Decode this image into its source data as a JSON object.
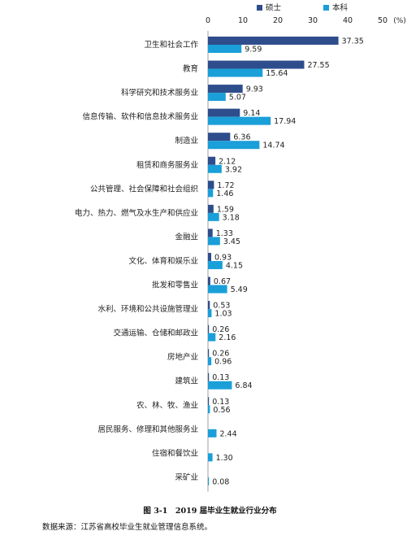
{
  "chart_data": {
    "type": "bar",
    "orientation": "horizontal",
    "unit_label": "(%)",
    "xlim": [
      0,
      50
    ],
    "xticks": [
      0,
      10,
      20,
      30,
      40,
      50
    ],
    "grid": false,
    "legend_position": "top",
    "categories": [
      "卫生和社会工作",
      "教育",
      "科学研究和技术服务业",
      "信息传输、软件和信息技术服务业",
      "制造业",
      "租赁和商务服务业",
      "公共管理、社会保障和社会组织",
      "电力、热力、燃气及水生产和供应业",
      "金融业",
      "文化、体育和娱乐业",
      "批发和零售业",
      "水利、环境和公共设施管理业",
      "交通运输、仓储和邮政业",
      "房地产业",
      "建筑业",
      "农、林、牧、渔业",
      "居民服务、修理和其他服务业",
      "住宿和餐饮业",
      "采矿业"
    ],
    "series": [
      {
        "name": "硕士",
        "color": "#2e4d8c",
        "values": [
          37.35,
          27.55,
          9.93,
          9.14,
          6.36,
          2.12,
          1.72,
          1.59,
          1.33,
          0.93,
          0.67,
          0.53,
          0.26,
          0.26,
          0.13,
          0.13,
          null,
          null,
          null
        ],
        "labels": [
          "37.35",
          "27.55",
          "9.93",
          "9.14",
          "6.36",
          "2.12",
          "1.72",
          "1.59",
          "1.33",
          "0.93",
          "0.67",
          "0.53",
          "0.26",
          "0.26",
          "0.13",
          "0.13",
          null,
          null,
          null
        ]
      },
      {
        "name": "本科",
        "color": "#1a9fd9",
        "values": [
          9.59,
          15.64,
          5.07,
          17.94,
          14.74,
          3.92,
          1.46,
          3.18,
          3.45,
          4.15,
          5.49,
          1.03,
          2.16,
          0.96,
          6.84,
          0.56,
          2.44,
          1.3,
          0.08
        ],
        "labels": [
          "9.59",
          "15.64",
          "5.07",
          "17.94",
          "14.74",
          "3.92",
          "1.46",
          "3.18",
          "3.45",
          "4.15",
          "5.49",
          "1.03",
          "2.16",
          "0.96",
          "6.84",
          "0.56",
          "2.44",
          "1.30",
          "0.08"
        ]
      }
    ]
  },
  "caption": "图 3-1　2019 届毕业生就业行业分布",
  "source": "数据来源：江苏省高校毕业生就业管理信息系统。"
}
